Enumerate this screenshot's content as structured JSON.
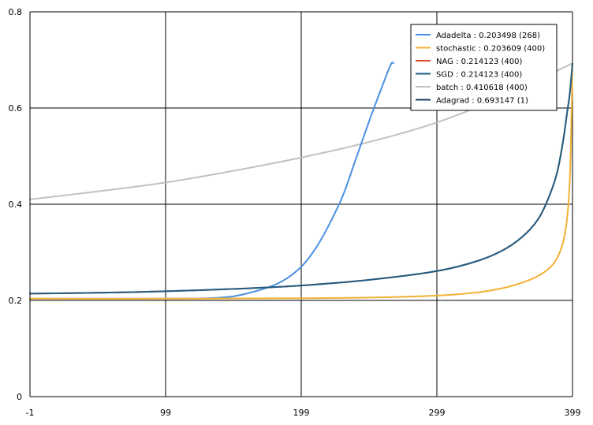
{
  "chart_data": {
    "type": "line",
    "title": "",
    "xlabel": "",
    "ylabel": "",
    "xlim": [
      -1,
      399
    ],
    "ylim": [
      0,
      0.8
    ],
    "x_ticks": [
      "-1",
      "99",
      "199",
      "299",
      "399"
    ],
    "y_ticks": [
      "0",
      "0.2",
      "0.4",
      "0.6",
      "0.8"
    ],
    "grid": true,
    "legend_position": "top-right",
    "series": [
      {
        "name": "Adadelta : 0.203498 (268)",
        "color": "#4a90e2",
        "points": [
          [
            -1,
            0.2035
          ],
          [
            50,
            0.2035
          ],
          [
            100,
            0.2036
          ],
          [
            130,
            0.2045
          ],
          [
            150,
            0.209
          ],
          [
            170,
            0.223
          ],
          [
            185,
            0.24
          ],
          [
            199,
            0.27
          ],
          [
            210,
            0.31
          ],
          [
            220,
            0.36
          ],
          [
            230,
            0.42
          ],
          [
            240,
            0.5
          ],
          [
            250,
            0.58
          ],
          [
            258,
            0.64
          ],
          [
            265,
            0.69
          ],
          [
            267,
            0.693
          ]
        ]
      },
      {
        "name": "stochastic : 0.203609 (400)",
        "color": "#f2b134",
        "points": [
          [
            -1,
            0.2036
          ],
          [
            99,
            0.2036
          ],
          [
            199,
            0.2046
          ],
          [
            250,
            0.206
          ],
          [
            299,
            0.21
          ],
          [
            330,
            0.217
          ],
          [
            350,
            0.227
          ],
          [
            365,
            0.24
          ],
          [
            375,
            0.253
          ],
          [
            383,
            0.27
          ],
          [
            388,
            0.29
          ],
          [
            392,
            0.32
          ],
          [
            395,
            0.37
          ],
          [
            397,
            0.45
          ],
          [
            398,
            0.55
          ],
          [
            399,
            0.693
          ]
        ]
      },
      {
        "name": "NAG : 0.214123 (400)",
        "color": "#e0481f",
        "points": [
          [
            -1,
            0.2141
          ],
          [
            50,
            0.216
          ],
          [
            99,
            0.219
          ],
          [
            150,
            0.224
          ],
          [
            199,
            0.231
          ],
          [
            250,
            0.243
          ],
          [
            299,
            0.261
          ],
          [
            330,
            0.283
          ],
          [
            350,
            0.308
          ],
          [
            365,
            0.34
          ],
          [
            375,
            0.375
          ],
          [
            383,
            0.425
          ],
          [
            388,
            0.47
          ],
          [
            392,
            0.53
          ],
          [
            395,
            0.59
          ],
          [
            397,
            0.63
          ],
          [
            399,
            0.693
          ]
        ]
      },
      {
        "name": "SGD : 0.214123 (400)",
        "color": "#1f5f86",
        "points": [
          [
            -1,
            0.2141
          ],
          [
            50,
            0.216
          ],
          [
            99,
            0.219
          ],
          [
            150,
            0.224
          ],
          [
            199,
            0.231
          ],
          [
            250,
            0.243
          ],
          [
            299,
            0.261
          ],
          [
            330,
            0.283
          ],
          [
            350,
            0.308
          ],
          [
            365,
            0.34
          ],
          [
            375,
            0.375
          ],
          [
            383,
            0.425
          ],
          [
            388,
            0.47
          ],
          [
            392,
            0.53
          ],
          [
            395,
            0.59
          ],
          [
            397,
            0.63
          ],
          [
            399,
            0.693
          ]
        ]
      },
      {
        "name": "batch : 0.410618 (400)",
        "color": "#c0c0c0",
        "points": [
          [
            -1,
            0.41
          ],
          [
            50,
            0.427
          ],
          [
            99,
            0.445
          ],
          [
            150,
            0.47
          ],
          [
            199,
            0.497
          ],
          [
            250,
            0.53
          ],
          [
            299,
            0.57
          ],
          [
            350,
            0.627
          ],
          [
            399,
            0.693
          ]
        ]
      },
      {
        "name": "Adagrad : 0.693147 (1)",
        "color": "#1b3f66",
        "points": []
      }
    ]
  }
}
